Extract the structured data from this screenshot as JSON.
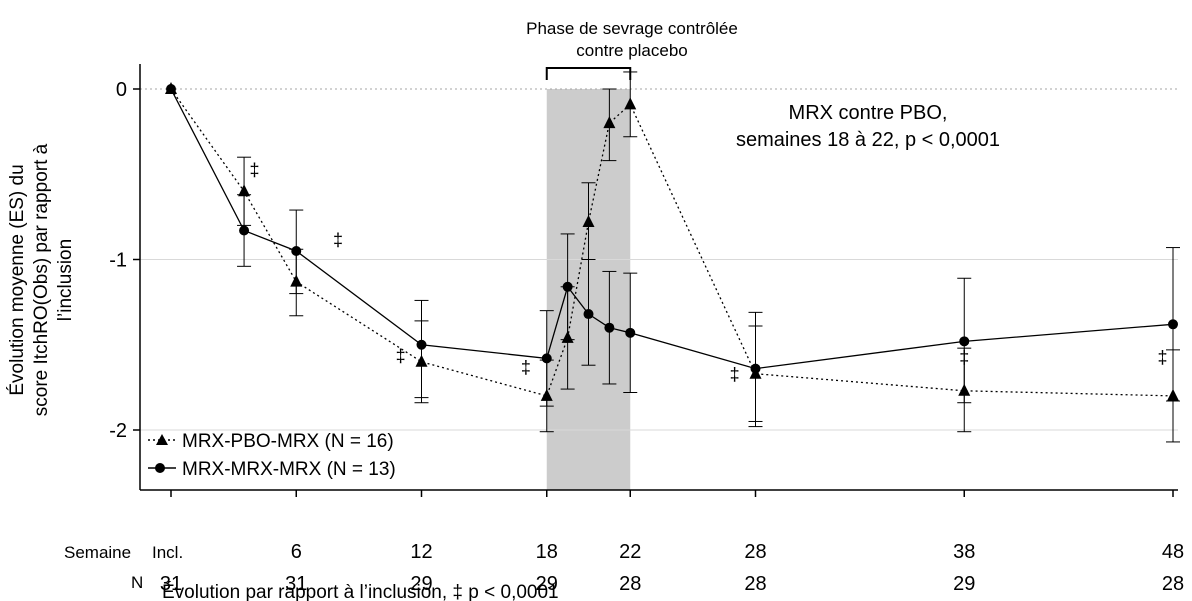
{
  "chart_data": {
    "type": "line",
    "ylabel_lines": [
      "Évolution moyenne (ES) du",
      "score ItchRO(Obs) par rapport à",
      "l’inclusion"
    ],
    "ylim": [
      -2.35,
      0.15
    ],
    "yticks": [
      0,
      -1,
      -2
    ],
    "ytick_labels": [
      "0",
      "-1",
      "-2"
    ],
    "xlim": [
      0,
      48
    ],
    "x_row_label": "Semaine",
    "xticks": [
      0,
      6,
      12,
      18,
      22,
      28,
      38,
      48
    ],
    "xtick_labels": [
      "Incl.",
      "6",
      "12",
      "18",
      "22",
      "28",
      "38",
      "48"
    ],
    "n_row_label": "N",
    "n_values": [
      "31",
      "31",
      "29",
      "29",
      "28",
      "28",
      "29",
      "28"
    ],
    "footnote": "Évolution par rapport à l’inclusion, ‡ p < 0,0001",
    "shaded_region": {
      "x": [
        18,
        22
      ],
      "label_lines": [
        "Phase de sevrage contrôlée",
        "contre placebo"
      ]
    },
    "annotation_lines": [
      "MRX contre PBO,",
      "semaines 18 à 22, p < 0,0001"
    ],
    "significance_symbol": "‡",
    "significance_x": [
      4,
      8,
      11,
      17,
      27,
      38,
      47.5
    ],
    "significance_y": [
      -0.51,
      -0.92,
      -1.6,
      -1.67,
      -1.71,
      -1.61,
      -1.61
    ],
    "series": [
      {
        "name": "MRX-PBO-MRX (N = 16)",
        "marker": "triangle",
        "line_style": "dotted",
        "x": [
          0,
          3.5,
          6,
          12,
          18,
          19,
          20,
          21,
          22,
          28,
          38,
          48
        ],
        "y": [
          0,
          -0.6,
          -1.13,
          -1.6,
          -1.8,
          -1.46,
          -0.78,
          -0.2,
          -0.09,
          -1.67,
          -1.77,
          -1.8
        ],
        "err_low": [
          0,
          -0.8,
          -1.33,
          -1.84,
          -2.01,
          -1.76,
          -1.0,
          -0.42,
          -0.28,
          -1.95,
          -2.01,
          -2.07
        ],
        "err_high": [
          0,
          -0.4,
          -0.94,
          -1.36,
          -1.59,
          -1.16,
          -0.55,
          0.0,
          0.1,
          -1.39,
          -1.52,
          -1.53
        ]
      },
      {
        "name": "MRX-MRX-MRX (N = 13)",
        "marker": "circle",
        "line_style": "solid",
        "x": [
          0,
          3.5,
          6,
          12,
          18,
          19,
          20,
          21,
          22,
          28,
          38,
          48
        ],
        "y": [
          0,
          -0.83,
          -0.95,
          -1.5,
          -1.58,
          -1.16,
          -1.32,
          -1.4,
          -1.43,
          -1.64,
          -1.48,
          -1.38
        ],
        "err_low": [
          0,
          -1.04,
          -1.2,
          -1.81,
          -1.86,
          -1.47,
          -1.62,
          -1.73,
          -1.78,
          -1.98,
          -1.84,
          -1.83
        ],
        "err_high": [
          0,
          -0.62,
          -0.71,
          -1.24,
          -1.3,
          -0.85,
          -1.0,
          -1.07,
          -1.08,
          -1.31,
          -1.11,
          -0.93
        ]
      }
    ]
  }
}
